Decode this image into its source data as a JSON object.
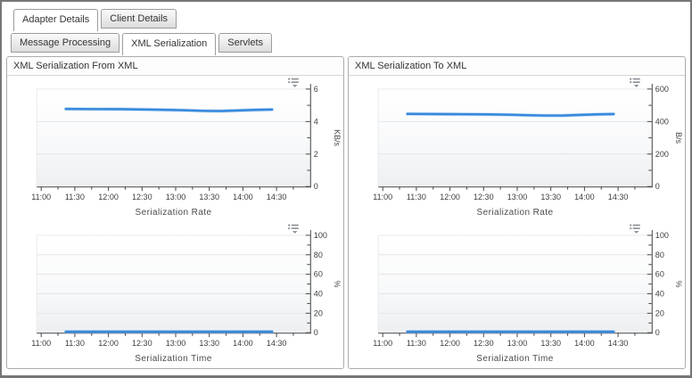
{
  "tabs_row1": {
    "items": [
      {
        "label": "Adapter Details",
        "active": true
      },
      {
        "label": "Client Details",
        "active": false
      }
    ]
  },
  "tabs_row2": {
    "items": [
      {
        "label": "Message Processing",
        "active": false
      },
      {
        "label": "XML Serialization",
        "active": true
      },
      {
        "label": "Servlets",
        "active": false
      }
    ]
  },
  "panels": [
    {
      "title": "XML Serialization From XML"
    },
    {
      "title": "XML Serialization To XML"
    }
  ],
  "colors": {
    "line": "#3789dd",
    "line_edge": "#93c1ec",
    "axis": "#4a4a4a",
    "gridline": "#e3e6e8",
    "plot_fade": "#edeff1",
    "icon": "#8a8f94"
  },
  "chart_data": [
    {
      "type": "line",
      "title": "Serialization Rate",
      "ylabel": "KB/s",
      "ylim": [
        0,
        6
      ],
      "ytick_major": 2,
      "ytick_minor": 1,
      "x_minutes_range": [
        0,
        240
      ],
      "x_minor_step": 15,
      "x_major_step": 30,
      "x_tick_labels": [
        "11:00",
        "11:30",
        "12:00",
        "12:30",
        "13:00",
        "13:30",
        "14:00",
        "14:30"
      ],
      "grid": true,
      "legend": "none",
      "series": [
        {
          "name": "From XML serialization rate",
          "x_minutes": [
            22,
            45,
            70,
            95,
            115,
            130,
            145,
            160,
            175,
            190,
            206
          ],
          "y": [
            4.78,
            4.77,
            4.76,
            4.74,
            4.72,
            4.69,
            4.66,
            4.65,
            4.68,
            4.72,
            4.74
          ]
        }
      ]
    },
    {
      "type": "line",
      "title": "Serialization Time",
      "ylabel": "%",
      "ylim": [
        0,
        100
      ],
      "ytick_major": 20,
      "ytick_minor": 10,
      "x_minutes_range": [
        0,
        240
      ],
      "x_minor_step": 15,
      "x_major_step": 30,
      "x_tick_labels": [
        "11:00",
        "11:30",
        "12:00",
        "12:30",
        "13:00",
        "13:30",
        "14:00",
        "14:30"
      ],
      "grid": true,
      "legend": "none",
      "series": [
        {
          "name": "From XML serialization time",
          "x_minutes": [
            22,
            60,
            100,
            140,
            180,
            206
          ],
          "y": [
            1.1,
            1.1,
            1.1,
            1.1,
            1.1,
            1.1
          ]
        }
      ]
    },
    {
      "type": "line",
      "title": "Serialization Rate",
      "ylabel": "B/s",
      "ylim": [
        0,
        600
      ],
      "ytick_major": 200,
      "ytick_minor": 100,
      "x_minutes_range": [
        0,
        240
      ],
      "x_minor_step": 15,
      "x_major_step": 30,
      "x_tick_labels": [
        "11:00",
        "11:30",
        "12:00",
        "12:30",
        "13:00",
        "13:30",
        "14:00",
        "14:30"
      ],
      "grid": true,
      "legend": "none",
      "series": [
        {
          "name": "To XML serialization rate",
          "x_minutes": [
            22,
            45,
            70,
            95,
            115,
            130,
            145,
            160,
            175,
            190,
            206
          ],
          "y": [
            447,
            446,
            445,
            444,
            442,
            439,
            437,
            437,
            441,
            444,
            446
          ]
        }
      ]
    },
    {
      "type": "line",
      "title": "Serialization Time",
      "ylabel": "%",
      "ylim": [
        0,
        100
      ],
      "ytick_major": 20,
      "ytick_minor": 10,
      "x_minutes_range": [
        0,
        240
      ],
      "x_minor_step": 15,
      "x_major_step": 30,
      "x_tick_labels": [
        "11:00",
        "11:30",
        "12:00",
        "12:30",
        "13:00",
        "13:30",
        "14:00",
        "14:30"
      ],
      "grid": true,
      "legend": "none",
      "series": [
        {
          "name": "To XML serialization time",
          "x_minutes": [
            22,
            60,
            100,
            140,
            180,
            206
          ],
          "y": [
            1.1,
            1.1,
            1.1,
            1.1,
            1.1,
            1.1
          ]
        }
      ]
    }
  ]
}
